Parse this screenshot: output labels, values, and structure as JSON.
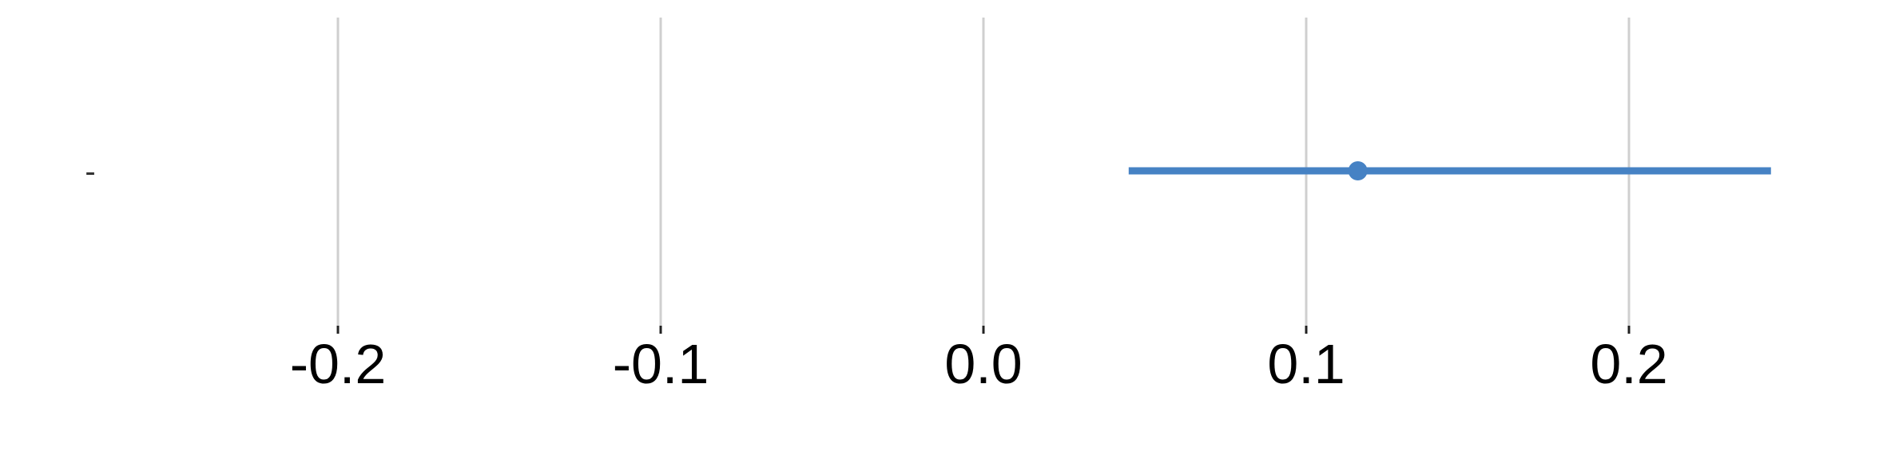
{
  "chart_data": {
    "type": "forest",
    "title": "",
    "xlabel": "",
    "ylabel": "",
    "xlim": [
      -0.2,
      0.2
    ],
    "xticks": [
      -0.2,
      -0.1,
      0.0,
      0.1,
      0.2
    ],
    "tick_labels": [
      "-0.2",
      "-0.1",
      "0.0",
      "0.1",
      "0.2"
    ],
    "grid": "vertical",
    "rows": [
      {
        "label": "-",
        "estimate": 0.116,
        "lower": 0.045,
        "upper": 0.244
      }
    ],
    "colors": {
      "series": "#4682C4",
      "grid": "#CFCFCF",
      "tick": "#222222"
    }
  }
}
